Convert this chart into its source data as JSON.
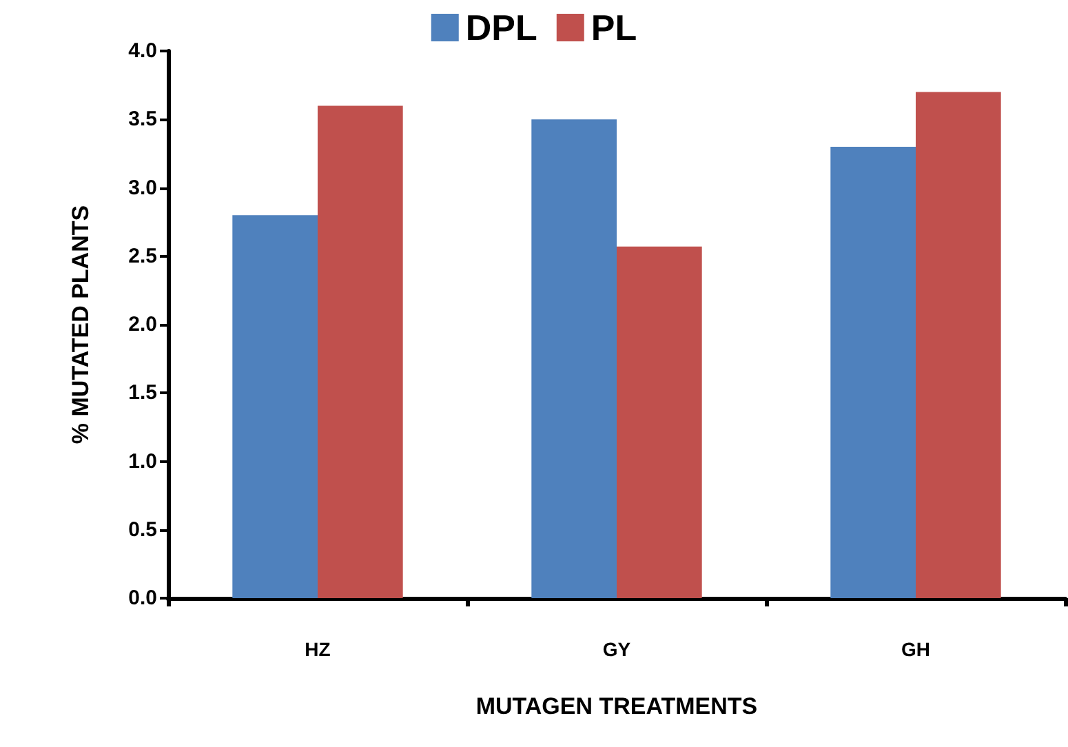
{
  "chart_data": {
    "type": "bar",
    "xlabel": "MUTAGEN TREATMENTS",
    "ylabel": "% MUTATED PLANTS",
    "categories": [
      "HZ",
      "GY",
      "GH"
    ],
    "series": [
      {
        "name": "DPL",
        "color": "#4f81bd",
        "values": [
          2.8,
          3.5,
          3.3
        ]
      },
      {
        "name": "PL",
        "color": "#c0504d",
        "values": [
          3.6,
          2.57,
          3.7
        ]
      }
    ],
    "ylim": [
      0,
      4
    ],
    "yticks": [
      {
        "value": 0,
        "label": "0.0"
      },
      0.5,
      {
        "value": 1,
        "label": "1.0"
      },
      1.5,
      {
        "value": 2,
        "label": "2.0"
      },
      2.5,
      {
        "value": 3,
        "label": "3.0"
      },
      3.5,
      {
        "value": 4,
        "label": "4.0"
      }
    ],
    "grid": false,
    "legend": "top"
  }
}
